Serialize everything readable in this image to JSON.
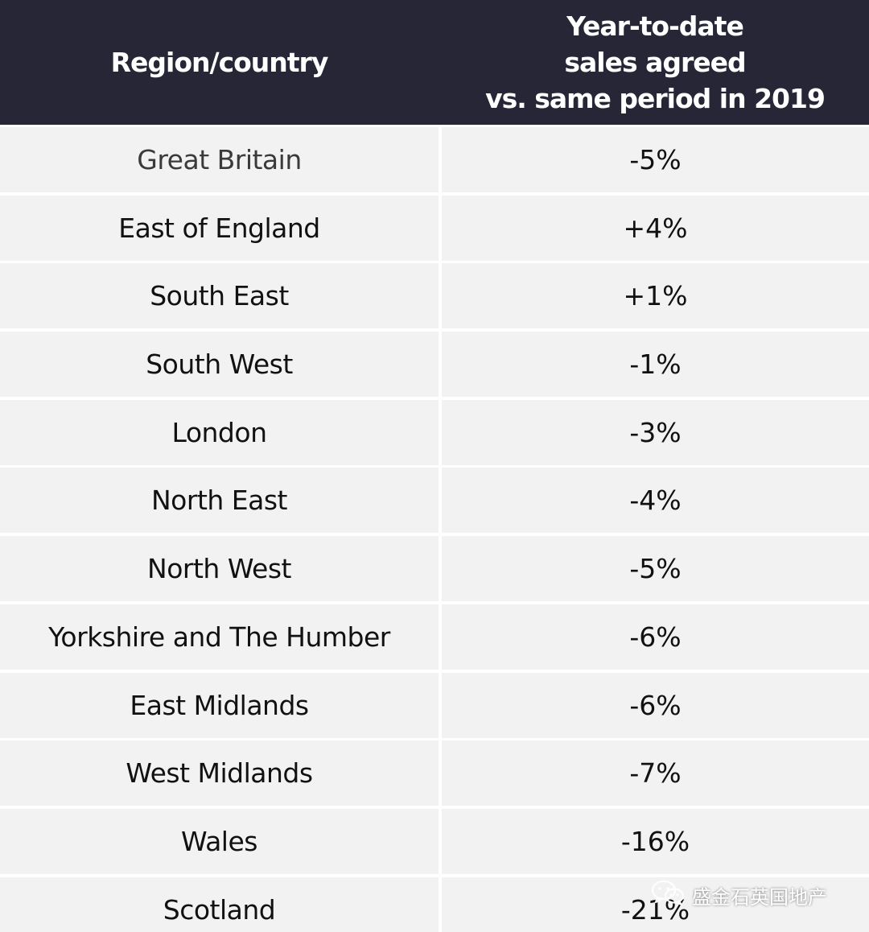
{
  "header": {
    "region_label": "Region/country",
    "metric_line1": "Year-to-date",
    "metric_line2": "sales agreed",
    "metric_line3": "vs. same period in 2019"
  },
  "rows": [
    {
      "region": "Great Britain",
      "value": "-5%"
    },
    {
      "region": "East of England",
      "value": "+4%"
    },
    {
      "region": "South East",
      "value": "+1%"
    },
    {
      "region": "South West",
      "value": "-1%"
    },
    {
      "region": "London",
      "value": "-3%"
    },
    {
      "region": "North East",
      "value": "-4%"
    },
    {
      "region": "North West",
      "value": "-5%"
    },
    {
      "region": "Yorkshire and The Humber",
      "value": "-6%"
    },
    {
      "region": "East Midlands",
      "value": "-6%"
    },
    {
      "region": "West Midlands",
      "value": "-7%"
    },
    {
      "region": "Wales",
      "value": "-16%"
    },
    {
      "region": "Scotland",
      "value": "-21%"
    }
  ],
  "watermark": {
    "icon": "wechat-icon",
    "text": "盛金石英国地产"
  },
  "colors": {
    "header_bg": "#262637",
    "row_bg": "#f2f2f2"
  }
}
